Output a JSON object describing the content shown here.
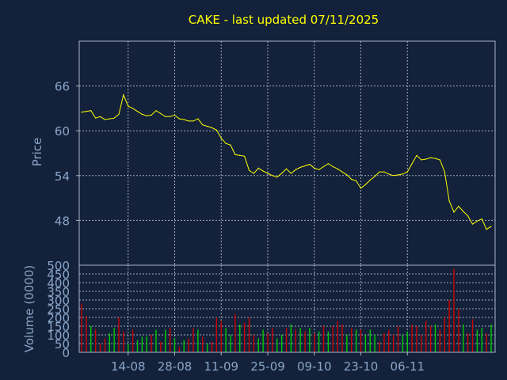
{
  "chart_data": [
    {
      "type": "line",
      "title": "CAKE - last updated 07/11/2025",
      "ylabel": "Price",
      "ylim": [
        42,
        72
      ],
      "yticks": [
        48,
        54,
        60,
        66
      ],
      "grid": true,
      "series": [
        {
          "color": "#ffff00",
          "values": [
            62.5,
            62.6,
            62.7,
            61.7,
            61.9,
            61.5,
            61.6,
            61.7,
            62.2,
            64.8,
            63.3,
            63.0,
            62.6,
            62.2,
            62.0,
            62.1,
            62.7,
            62.3,
            61.9,
            61.9,
            62.1,
            61.6,
            61.5,
            61.3,
            61.3,
            61.6,
            60.8,
            60.6,
            60.4,
            60.1,
            59.0,
            58.3,
            58.1,
            56.8,
            56.7,
            56.6,
            54.7,
            54.3,
            55.0,
            54.6,
            54.3,
            54.0,
            53.8,
            54.3,
            54.9,
            54.3,
            54.8,
            55.1,
            55.3,
            55.5,
            55.0,
            54.8,
            55.2,
            55.6,
            55.2,
            54.9,
            54.5,
            54.1,
            53.5,
            53.3,
            52.3,
            52.8,
            53.4,
            53.9,
            54.5,
            54.5,
            54.2,
            54.0,
            54.1,
            54.2,
            54.5,
            55.6,
            56.7,
            56.1,
            56.2,
            56.4,
            56.3,
            56.1,
            54.5,
            50.6,
            49.1,
            49.9,
            49.2,
            48.6,
            47.5,
            47.9,
            48.2,
            46.8,
            47.2
          ]
        }
      ]
    },
    {
      "type": "bar",
      "ylabel": "Volume (0000)",
      "ylim": [
        0,
        500
      ],
      "yticks": [
        0,
        50,
        100,
        150,
        200,
        250,
        300,
        350,
        400,
        450,
        500
      ],
      "xticks": [
        {
          "label": "14-08",
          "index": 10
        },
        {
          "label": "28-08",
          "index": 20
        },
        {
          "label": "11-09",
          "index": 30
        },
        {
          "label": "25-09",
          "index": 40
        },
        {
          "label": "09-10",
          "index": 50
        },
        {
          "label": "23-10",
          "index": 60
        },
        {
          "label": "06-11",
          "index": 70
        }
      ],
      "up_color": "#00cc00",
      "down_color": "#cc0000",
      "grid": true,
      "values": [
        280,
        210,
        150,
        130,
        50,
        80,
        110,
        140,
        200,
        120,
        50,
        130,
        70,
        90,
        90,
        100,
        130,
        60,
        130,
        140,
        80,
        30,
        70,
        80,
        140,
        130,
        90,
        50,
        60,
        200,
        180,
        140,
        100,
        220,
        160,
        170,
        200,
        100,
        80,
        130,
        110,
        140,
        80,
        100,
        140,
        160,
        130,
        140,
        120,
        140,
        110,
        120,
        150,
        120,
        150,
        180,
        160,
        100,
        140,
        130,
        130,
        100,
        130,
        100,
        60,
        110,
        130,
        100,
        150,
        100,
        120,
        160,
        150,
        100,
        180,
        150,
        160,
        130,
        200,
        300,
        480,
        250,
        160,
        110,
        190,
        130,
        140,
        110,
        160
      ],
      "up": [
        false,
        false,
        true,
        false,
        false,
        false,
        true,
        true,
        false,
        false,
        true,
        false,
        true,
        true,
        true,
        false,
        true,
        false,
        true,
        false,
        true,
        false,
        true,
        false,
        false,
        true,
        false,
        true,
        false,
        false,
        false,
        true,
        true,
        false,
        true,
        false,
        false,
        false,
        true,
        true,
        false,
        false,
        true,
        true,
        false,
        true,
        false,
        true,
        false,
        true,
        false,
        true,
        false,
        true,
        false,
        false,
        false,
        true,
        false,
        true,
        false,
        true,
        true,
        true,
        false,
        false,
        false,
        false,
        false,
        true,
        true,
        false,
        false,
        false,
        false,
        false,
        true,
        false,
        false,
        false,
        false,
        false,
        true,
        false,
        false,
        true,
        true,
        false,
        true
      ]
    }
  ]
}
